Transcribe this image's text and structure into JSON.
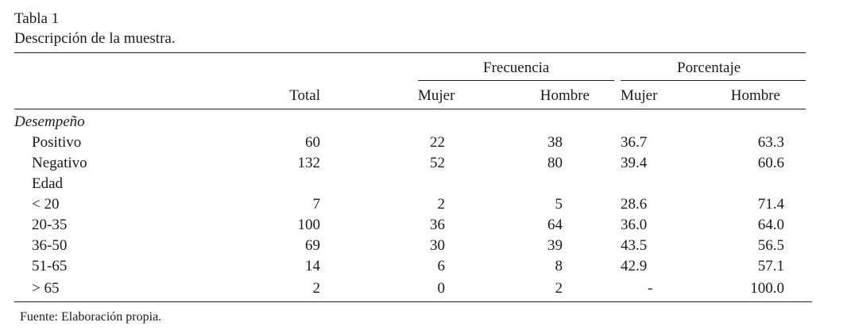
{
  "table": {
    "title": "Tabla 1",
    "subtitle": "Descripción de la muestra.",
    "group_headers": {
      "frecuencia": "Frecuencia",
      "porcentaje": "Porcentaje"
    },
    "column_headers": {
      "total": "Total",
      "frec_mujer": "Mujer",
      "frec_hombre": "Hombre",
      "pct_mujer": "Mujer",
      "pct_hombre": "Hombre"
    },
    "rows": [
      {
        "label": "Desempeño",
        "total": "",
        "frec_mujer": "",
        "frec_hombre": "",
        "pct_mujer": "",
        "pct_hombre": ""
      },
      {
        "label": "Positivo",
        "total": "60",
        "frec_mujer": "22",
        "frec_hombre": "38",
        "pct_mujer": "36.7",
        "pct_hombre": "63.3"
      },
      {
        "label": "Negativo",
        "total": "132",
        "frec_mujer": "52",
        "frec_hombre": "80",
        "pct_mujer": "39.4",
        "pct_hombre": "60.6"
      },
      {
        "label": "Edad",
        "total": "",
        "frec_mujer": "",
        "frec_hombre": "",
        "pct_mujer": "",
        "pct_hombre": ""
      },
      {
        "label": "< 20",
        "total": "7",
        "frec_mujer": "2",
        "frec_hombre": "5",
        "pct_mujer": "28.6",
        "pct_hombre": "71.4"
      },
      {
        "label": "20-35",
        "total": "100",
        "frec_mujer": "36",
        "frec_hombre": "64",
        "pct_mujer": "36.0",
        "pct_hombre": "64.0"
      },
      {
        "label": "36-50",
        "total": "69",
        "frec_mujer": "30",
        "frec_hombre": "39",
        "pct_mujer": "43.5",
        "pct_hombre": "56.5"
      },
      {
        "label": "51-65",
        "total": "14",
        "frec_mujer": "6",
        "frec_hombre": "8",
        "pct_mujer": "42.9",
        "pct_hombre": "57.1"
      },
      {
        "label": "> 65",
        "total": "2",
        "frec_mujer": "0",
        "frec_hombre": "2",
        "pct_mujer": "-",
        "pct_hombre": "100.0"
      }
    ],
    "footer": "Fuente: Elaboración propia."
  }
}
